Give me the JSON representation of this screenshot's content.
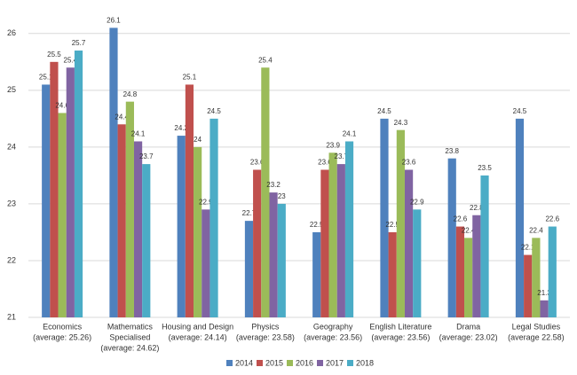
{
  "chart_data": {
    "type": "bar",
    "categories": [
      [
        "Economics",
        "(average: 25.26)"
      ],
      [
        "Mathematics",
        "Specialised",
        "(average: 24.62)"
      ],
      [
        "Housing and Design",
        "(average: 24.14)"
      ],
      [
        "Physics",
        "(average: 23.58)"
      ],
      [
        "Geography",
        "(average: 23.56)"
      ],
      [
        "English Literature",
        "(average: 23.56)"
      ],
      [
        "Drama",
        "(average: 23.02)"
      ],
      [
        "Legal Studies",
        "(average 22.58)"
      ]
    ],
    "series": [
      {
        "name": "2014",
        "color": "#4f81bd",
        "values": [
          25.1,
          26.1,
          24.2,
          22.7,
          22.5,
          24.5,
          23.8,
          24.5
        ]
      },
      {
        "name": "2015",
        "color": "#c0504d",
        "values": [
          25.5,
          24.4,
          25.1,
          23.6,
          23.6,
          22.5,
          22.6,
          22.1
        ]
      },
      {
        "name": "2016",
        "color": "#9bbb59",
        "values": [
          24.6,
          24.8,
          24,
          25.4,
          23.9,
          24.3,
          22.4,
          22.4
        ]
      },
      {
        "name": "2017",
        "color": "#8064a2",
        "values": [
          25.4,
          24.1,
          22.9,
          23.2,
          23.7,
          23.6,
          22.8,
          21.3
        ]
      },
      {
        "name": "2018",
        "color": "#4bacc6",
        "values": [
          25.7,
          23.7,
          24.5,
          23,
          24.1,
          22.9,
          23.5,
          22.6
        ]
      }
    ],
    "ylim": [
      21,
      26.2
    ],
    "yticks": [
      21,
      22,
      23,
      24,
      25,
      26
    ],
    "grid": true,
    "legend": "bottom"
  }
}
